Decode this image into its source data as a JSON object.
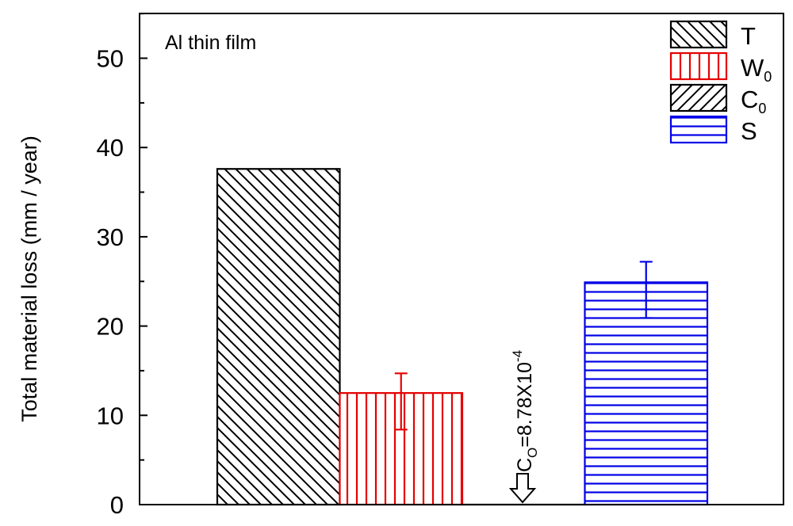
{
  "chart_data": {
    "type": "bar",
    "ylabel": "Total material loss (mm / year)",
    "ylim": [
      0,
      55
    ],
    "yticks": [
      0,
      10,
      20,
      30,
      40,
      50
    ],
    "grid": false,
    "legend_position": "top-right",
    "annotation": "Al thin film",
    "bars": [
      {
        "name": "T",
        "subscript": "",
        "value": 37.6,
        "error": null,
        "color": "#000000",
        "pattern": "diagonal-down"
      },
      {
        "name": "W",
        "subscript": "0",
        "value": 12.5,
        "error": [
          8.4,
          14.7
        ],
        "color": "#e60000",
        "pattern": "vertical"
      },
      {
        "name": "C",
        "subscript": "0",
        "value": 0.000878,
        "error": null,
        "color": "#000000",
        "pattern": "diagonal-up"
      },
      {
        "name": "S",
        "subscript": "",
        "value": 24.9,
        "error": [
          20.9,
          27.2
        ],
        "color": "#0000e6",
        "pattern": "horizontal"
      }
    ],
    "value_label": {
      "prefix": "C",
      "sub": "O",
      "mid": "=8.78X10",
      "sup": "-4"
    }
  }
}
